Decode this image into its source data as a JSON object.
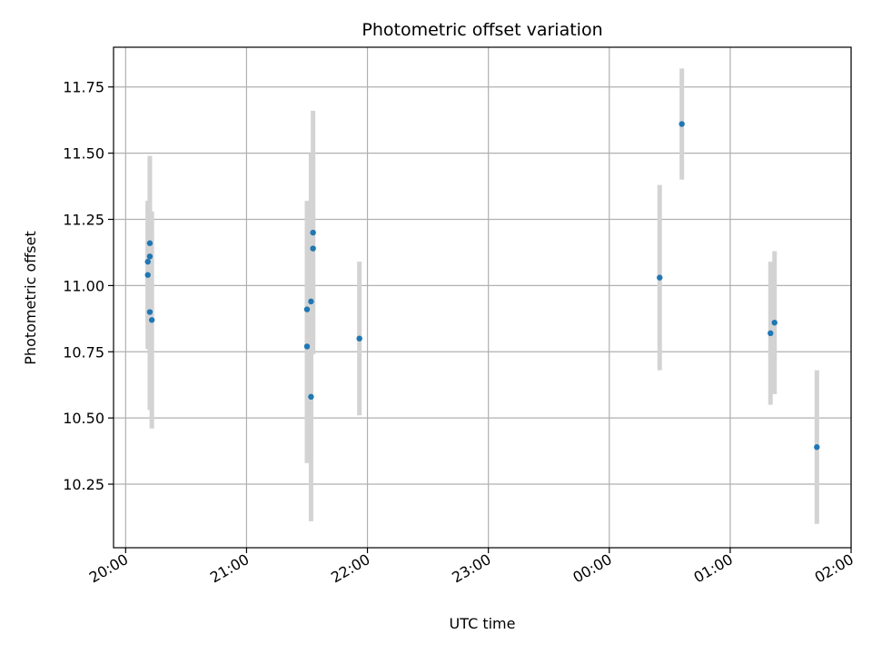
{
  "chart_data": {
    "type": "scatter",
    "title": "Photometric offset variation",
    "xlabel": "UTC time",
    "ylabel": "Photometric offset",
    "grid": true,
    "x_axis_type": "time",
    "x_ticks": [
      "20:00",
      "21:00",
      "22:00",
      "23:00",
      "00:00",
      "01:00",
      "02:00"
    ],
    "xlim": [
      "19:54",
      "02:00"
    ],
    "y_ticks": [
      "10.25",
      "10.50",
      "10.75",
      "11.00",
      "11.25",
      "11.50",
      "11.75"
    ],
    "ylim": [
      10.01,
      11.9
    ],
    "colors": {
      "points": "#1f77b4",
      "error_bars": "#d3d3d3",
      "grid": "#b0b0b0"
    },
    "points": [
      {
        "x": "20:11",
        "y": 11.09,
        "err": 0.23
      },
      {
        "x": "20:11",
        "y": 11.04,
        "err": 0.28
      },
      {
        "x": "20:12",
        "y": 11.16,
        "err": 0.33
      },
      {
        "x": "20:12",
        "y": 11.11,
        "err": 0.37
      },
      {
        "x": "20:12",
        "y": 10.9,
        "err": 0.37
      },
      {
        "x": "20:13",
        "y": 10.87,
        "err": 0.41
      },
      {
        "x": "21:30",
        "y": 10.91,
        "err": 0.41
      },
      {
        "x": "21:30",
        "y": 10.77,
        "err": 0.44
      },
      {
        "x": "21:32",
        "y": 10.58,
        "err": 0.47
      },
      {
        "x": "21:32",
        "y": 10.94,
        "err": 0.56
      },
      {
        "x": "21:33",
        "y": 11.14,
        "err": 0.35
      },
      {
        "x": "21:33",
        "y": 11.2,
        "err": 0.46
      },
      {
        "x": "21:56",
        "y": 10.8,
        "err": 0.29
      },
      {
        "x": "00:25",
        "y": 11.03,
        "err": 0.35
      },
      {
        "x": "00:36",
        "y": 11.61,
        "err": 0.21
      },
      {
        "x": "01:20",
        "y": 10.82,
        "err": 0.27
      },
      {
        "x": "01:22",
        "y": 10.86,
        "err": 0.27
      },
      {
        "x": "01:43",
        "y": 10.39,
        "err": 0.29
      }
    ]
  }
}
